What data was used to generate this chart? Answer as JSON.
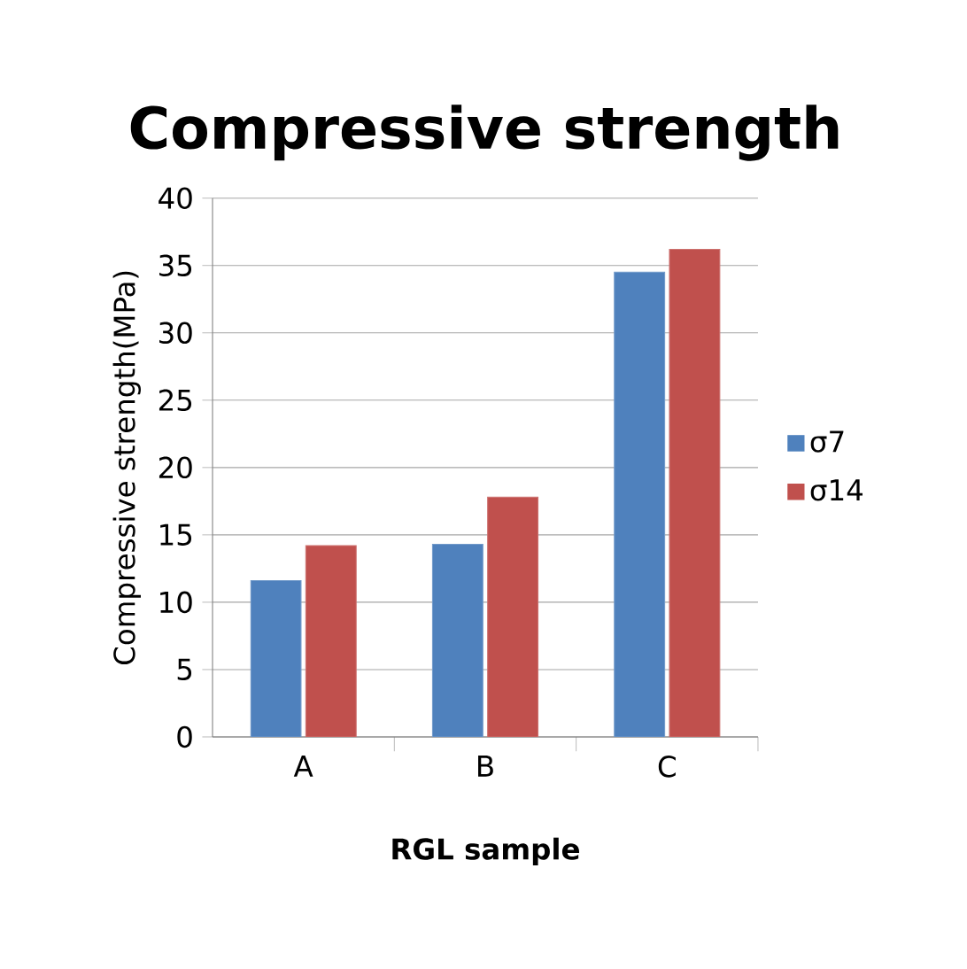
{
  "chart_data": {
    "type": "bar",
    "title": "Compressive strength",
    "xlabel": "RGL sample",
    "ylabel": "Compressive strength(MPa)",
    "categories": [
      "A",
      "B",
      "C"
    ],
    "series": [
      {
        "name": "σ7",
        "color": "#4f81bd",
        "values": [
          11.6,
          14.3,
          34.5
        ]
      },
      {
        "name": "σ14",
        "color": "#c0504d",
        "values": [
          14.2,
          17.8,
          36.2
        ]
      }
    ],
    "ylim": [
      0,
      40
    ],
    "yticks": [
      0,
      5,
      10,
      15,
      20,
      25,
      30,
      35,
      40
    ],
    "grid": "y",
    "legend": "right"
  }
}
